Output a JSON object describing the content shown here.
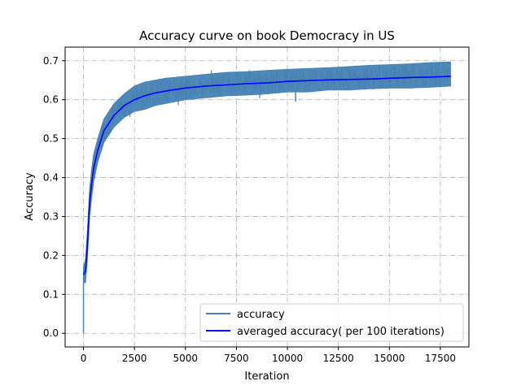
{
  "chart_data": {
    "type": "line",
    "title": "Accuracy curve on book Democracy in US",
    "xlabel": "Iteration",
    "ylabel": "Accuracy",
    "xlim": [
      -900,
      18900
    ],
    "ylim": [
      -0.035,
      0.735
    ],
    "xticks": [
      0,
      2500,
      5000,
      7500,
      10000,
      12500,
      15000,
      17500
    ],
    "yticks": [
      0.0,
      0.1,
      0.2,
      0.3,
      0.4,
      0.5,
      0.6,
      0.7
    ],
    "xtick_labels": [
      "0",
      "2500",
      "5000",
      "7500",
      "10000",
      "12500",
      "15000",
      "17500"
    ],
    "ytick_labels": [
      "0.0",
      "0.1",
      "0.2",
      "0.3",
      "0.4",
      "0.5",
      "0.6",
      "0.7"
    ],
    "grid": true,
    "legend_position": "lower-right",
    "series": [
      {
        "name": "accuracy",
        "color": "#4682b4",
        "style": "noisy-band",
        "x": [
          0,
          100,
          200,
          300,
          400,
          500,
          700,
          1000,
          1500,
          2000,
          2500,
          3000,
          3500,
          4000,
          5000,
          6000,
          7000,
          8000,
          9000,
          10000,
          11000,
          12000,
          13000,
          14000,
          15000,
          16000,
          17000,
          18000
        ],
        "y_low": [
          0.13,
          0.13,
          0.2,
          0.3,
          0.35,
          0.39,
          0.44,
          0.49,
          0.53,
          0.555,
          0.57,
          0.575,
          0.585,
          0.59,
          0.6,
          0.605,
          0.61,
          0.612,
          0.615,
          0.62,
          0.62,
          0.625,
          0.625,
          0.628,
          0.63,
          0.63,
          0.632,
          0.635
        ],
        "y_high": [
          0.17,
          0.19,
          0.27,
          0.37,
          0.42,
          0.46,
          0.5,
          0.55,
          0.59,
          0.615,
          0.635,
          0.645,
          0.65,
          0.655,
          0.66,
          0.665,
          0.67,
          0.672,
          0.675,
          0.678,
          0.68,
          0.682,
          0.685,
          0.688,
          0.69,
          0.692,
          0.695,
          0.697
        ]
      },
      {
        "name": "averaged accuracy( per 100 iterations)",
        "color": "#0000ff",
        "style": "line",
        "x": [
          0,
          100,
          200,
          300,
          400,
          500,
          700,
          1000,
          1500,
          2000,
          2500,
          3000,
          3500,
          4000,
          5000,
          6000,
          7000,
          8000,
          9000,
          10000,
          11000,
          12000,
          13000,
          14000,
          15000,
          16000,
          17000,
          18000
        ],
        "y": [
          0.15,
          0.16,
          0.235,
          0.335,
          0.385,
          0.425,
          0.47,
          0.52,
          0.56,
          0.585,
          0.6,
          0.61,
          0.617,
          0.622,
          0.63,
          0.635,
          0.638,
          0.641,
          0.643,
          0.647,
          0.649,
          0.651,
          0.652,
          0.653,
          0.655,
          0.657,
          0.658,
          0.66
        ]
      }
    ],
    "outliers": [
      {
        "x": 0,
        "y": 0.0
      },
      {
        "x": 10400,
        "y": 0.595
      }
    ]
  }
}
